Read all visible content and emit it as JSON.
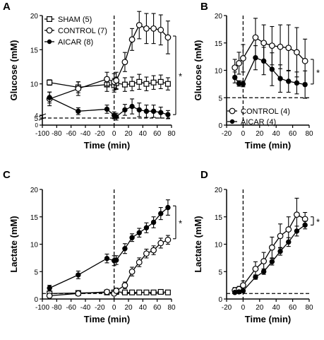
{
  "chart_data": [
    {
      "panel_letter": "A",
      "type": "line",
      "xlabel": "Time (min)",
      "ylabel": "Glucose (mM)",
      "xlim": [
        -100,
        80
      ],
      "ylim": [
        0,
        20
      ],
      "axis_break": true,
      "xticks": [
        -100,
        -80,
        -60,
        -40,
        -20,
        0,
        20,
        40,
        60,
        80
      ],
      "xtick_labels": [
        "-100",
        "-80",
        "-60",
        "-40",
        "-20",
        "0",
        "20",
        "40",
        "60",
        "80"
      ],
      "yticks": [
        0,
        4,
        5,
        10,
        15,
        20
      ],
      "ytick_labels": [
        "0",
        "4",
        "5",
        "10",
        "15",
        "20"
      ],
      "vline_x": 0,
      "hline_y": 5,
      "legend_position": "top-left",
      "significance": {
        "label": "*",
        "y_range": [
          5.5,
          17
        ]
      },
      "series": [
        {
          "name": "SHAM (5)",
          "marker": "open-square",
          "x": [
            -90,
            -50,
            -10,
            0,
            3,
            15,
            25,
            35,
            45,
            55,
            65,
            75
          ],
          "y": [
            10.2,
            9.5,
            9.9,
            9.8,
            10.1,
            9.9,
            10.0,
            10.3,
            10.0,
            10.2,
            10.3,
            10.0
          ],
          "err": [
            0.4,
            0.8,
            1.0,
            1.0,
            0.9,
            1.0,
            1.0,
            1.1,
            1.0,
            1.0,
            1.0,
            0.9
          ]
        },
        {
          "name": "CONTROL (7)",
          "marker": "open-circle",
          "x": [
            -90,
            -50,
            -10,
            0,
            3,
            15,
            25,
            35,
            45,
            55,
            65,
            75
          ],
          "y": [
            7.8,
            9.3,
            10.7,
            10.3,
            10.5,
            13.2,
            16.5,
            18.6,
            18.1,
            18.1,
            17.9,
            16.8
          ],
          "err": [
            1.0,
            1.0,
            1.0,
            1.2,
            1.2,
            1.4,
            1.6,
            2.0,
            2.2,
            2.2,
            2.2,
            2.4
          ]
        },
        {
          "name": "AICAR (8)",
          "marker": "filled-circle",
          "x": [
            -90,
            -50,
            -10,
            0,
            3,
            15,
            25,
            35,
            45,
            55,
            65,
            75
          ],
          "y": [
            8.0,
            6.0,
            6.3,
            5.4,
            5.2,
            6.2,
            6.7,
            6.2,
            6.0,
            6.0,
            5.8,
            5.5
          ],
          "err": [
            0.8,
            0.5,
            0.6,
            0.5,
            0.5,
            0.8,
            1.1,
            1.0,
            0.9,
            0.9,
            0.8,
            0.6
          ]
        }
      ]
    },
    {
      "panel_letter": "B",
      "type": "line",
      "xlabel": "Time (min)",
      "ylabel": "Glucose (mM)",
      "xlim": [
        -20,
        80
      ],
      "ylim": [
        0,
        20
      ],
      "xticks": [
        -20,
        0,
        20,
        40,
        60,
        80
      ],
      "xtick_labels": [
        "-20",
        "0",
        "20",
        "40",
        "60",
        "80"
      ],
      "yticks": [
        0,
        5,
        10,
        15,
        20
      ],
      "ytick_labels": [
        "0",
        "5",
        "10",
        "15",
        "20"
      ],
      "vline_x": 0,
      "hline_y": 5,
      "legend_position": "bottom-center",
      "significance": {
        "label": "*",
        "y_range": [
          7.5,
          12
        ]
      },
      "series": [
        {
          "name": "CONTROL (4)",
          "marker": "open-circle",
          "x": [
            -10,
            -5,
            0,
            15,
            25,
            35,
            45,
            55,
            65,
            75
          ],
          "y": [
            10.5,
            11.3,
            12.2,
            16.0,
            15.0,
            14.5,
            14.3,
            14.1,
            13.3,
            11.7
          ],
          "err": [
            1.5,
            2.0,
            2.5,
            3.5,
            3.3,
            3.5,
            4.0,
            4.2,
            4.5,
            4.0
          ]
        },
        {
          "name": "AICAR (4)",
          "marker": "filled-circle",
          "x": [
            -10,
            -5,
            0,
            15,
            25,
            35,
            45,
            55,
            65,
            75
          ],
          "y": [
            8.7,
            7.6,
            7.5,
            12.3,
            11.7,
            10.2,
            8.5,
            8.0,
            7.7,
            7.4
          ],
          "err": [
            1.0,
            0.5,
            0.5,
            2.2,
            2.5,
            3.0,
            2.5,
            2.0,
            2.0,
            2.5
          ]
        }
      ]
    },
    {
      "panel_letter": "C",
      "type": "line",
      "xlabel": "Time (min)",
      "ylabel": "Lactate (mM)",
      "xlim": [
        -100,
        80
      ],
      "ylim": [
        0,
        20
      ],
      "xticks": [
        -100,
        -80,
        -60,
        -40,
        -20,
        0,
        20,
        40,
        60,
        80
      ],
      "xtick_labels": [
        "-100",
        "-80",
        "-60",
        "-40",
        "-20",
        "0",
        "20",
        "40",
        "60",
        "80"
      ],
      "yticks": [
        0,
        5,
        10,
        15,
        20
      ],
      "ytick_labels": [
        "0",
        "5",
        "10",
        "15",
        "20"
      ],
      "vline_x": 0,
      "hline_y": 1,
      "significance": {
        "label": "*",
        "y_range": [
          11,
          17
        ]
      },
      "series": [
        {
          "name": "SHAM (5)",
          "marker": "open-square",
          "x": [
            -90,
            -50,
            -10,
            0,
            3,
            15,
            25,
            35,
            45,
            55,
            65,
            75
          ],
          "y": [
            1.0,
            1.1,
            1.2,
            1.2,
            1.3,
            1.2,
            1.2,
            1.2,
            1.2,
            1.2,
            1.3,
            1.2
          ],
          "err": [
            0.2,
            0.2,
            0.2,
            0.2,
            0.2,
            0.2,
            0.2,
            0.2,
            0.2,
            0.2,
            0.2,
            0.2
          ]
        },
        {
          "name": "CONTROL (7)",
          "marker": "open-circle",
          "x": [
            -90,
            -50,
            -10,
            0,
            3,
            15,
            25,
            35,
            45,
            55,
            65,
            75
          ],
          "y": [
            0.6,
            1.0,
            1.3,
            1.0,
            1.5,
            2.5,
            5.0,
            6.7,
            8.3,
            8.9,
            10.2,
            10.8
          ],
          "err": [
            0.2,
            0.3,
            0.3,
            0.3,
            0.5,
            0.6,
            0.8,
            0.8,
            0.8,
            0.8,
            0.9,
            0.8
          ]
        },
        {
          "name": "AICAR (8)",
          "marker": "filled-circle",
          "x": [
            -90,
            -50,
            -10,
            0,
            3,
            15,
            25,
            35,
            45,
            55,
            65,
            75
          ],
          "y": [
            2.0,
            4.4,
            7.4,
            7.0,
            7.1,
            9.2,
            11.2,
            12.1,
            13.0,
            14.0,
            15.6,
            16.7
          ],
          "err": [
            0.5,
            0.7,
            0.8,
            0.9,
            0.8,
            0.9,
            0.7,
            0.8,
            0.9,
            1.0,
            1.1,
            1.4
          ]
        }
      ]
    },
    {
      "panel_letter": "D",
      "type": "line",
      "xlabel": "Time (min)",
      "ylabel": "Lactate (mM)",
      "xlim": [
        -20,
        80
      ],
      "ylim": [
        0,
        20
      ],
      "xticks": [
        -20,
        0,
        20,
        40,
        60,
        80
      ],
      "xtick_labels": [
        "-20",
        "0",
        "20",
        "40",
        "60",
        "80"
      ],
      "yticks": [
        0,
        5,
        10,
        15,
        20
      ],
      "ytick_labels": [
        "0",
        "5",
        "10",
        "15",
        "20"
      ],
      "vline_x": 0,
      "hline_y": 1,
      "significance": {
        "label": "*",
        "y_range": [
          13.5,
          15
        ]
      },
      "series": [
        {
          "name": "CONTROL (4)",
          "marker": "open-circle",
          "x": [
            -10,
            -5,
            0,
            15,
            25,
            35,
            45,
            55,
            65,
            75
          ],
          "y": [
            1.6,
            1.8,
            2.5,
            5.5,
            6.9,
            9.4,
            11.5,
            12.7,
            15.4,
            14.6
          ],
          "err": [
            0.5,
            0.5,
            0.8,
            1.3,
            1.6,
            1.9,
            2.2,
            2.3,
            3.0,
            1.2
          ]
        },
        {
          "name": "AICAR (4)",
          "marker": "filled-circle",
          "x": [
            -10,
            -5,
            0,
            15,
            25,
            35,
            45,
            55,
            65,
            75
          ],
          "y": [
            1.2,
            1.3,
            1.5,
            4.0,
            5.0,
            6.8,
            8.7,
            10.4,
            12.4,
            13.5
          ],
          "err": [
            0.2,
            0.2,
            0.3,
            0.4,
            0.5,
            0.6,
            0.7,
            0.8,
            0.9,
            0.7
          ]
        }
      ]
    }
  ]
}
